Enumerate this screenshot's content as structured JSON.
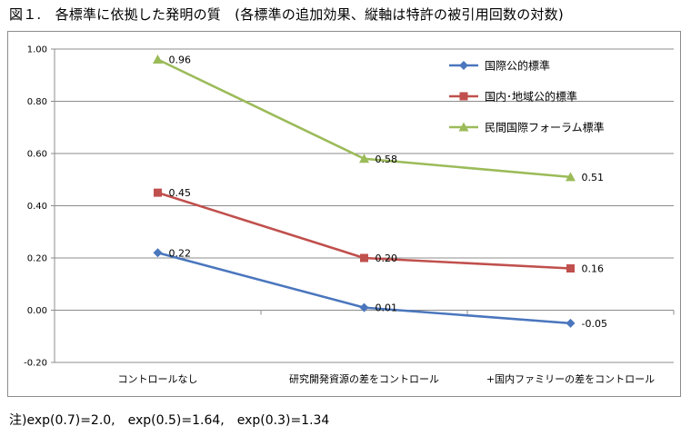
{
  "figure": {
    "title": "図１.　各標準に依拠した発明の質　(各標準の追加効果、縦軸は特許の被引用回数の対数)",
    "note": "注)exp(0.7)=2.0,　exp(0.5)=1.64,　exp(0.3)=1.34"
  },
  "chart_data": {
    "type": "line",
    "categories": [
      "コントロールなし",
      "研究開発資源の差をコントロール",
      "+国内ファミリーの差をコントロール"
    ],
    "series": [
      {
        "name": "国際公的標準",
        "values": [
          0.22,
          0.01,
          -0.05
        ],
        "labels": [
          "0.22",
          "0.01",
          "-0.05"
        ],
        "color": "#4a76bd",
        "marker": "diamond"
      },
      {
        "name": "国内･地域公的標準",
        "values": [
          0.45,
          0.2,
          0.16
        ],
        "labels": [
          "0.45",
          "0.20",
          "0.16"
        ],
        "color": "#c0504d",
        "marker": "square"
      },
      {
        "name": "民間国際フォーラム標準",
        "values": [
          0.96,
          0.58,
          0.51
        ],
        "labels": [
          "0.96",
          "0.58",
          "0.51"
        ],
        "color": "#9bbb59",
        "marker": "triangle"
      }
    ],
    "ylim": [
      -0.2,
      1.0
    ],
    "yticks": [
      "-0.20",
      "0.00",
      "0.20",
      "0.40",
      "0.60",
      "0.80",
      "1.00"
    ],
    "grid": true,
    "legend_position": "top-right",
    "title": "",
    "xlabel": "",
    "ylabel": ""
  }
}
